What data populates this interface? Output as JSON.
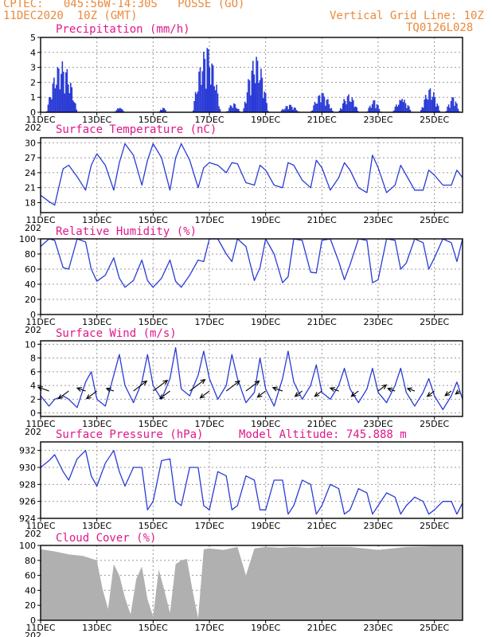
{
  "header": {
    "station": "CPTEC:   045:56W-14:30S   POSSE (GO)",
    "run": "11DEC2020  10Z (GMT)",
    "grid_line": "Vertical Grid Line: 10Z",
    "code": "TQ0126L028"
  },
  "colors": {
    "header": "#e98a3c",
    "title": "#e0188a",
    "line": "#2a3bd6",
    "cloud": "#b0b0b0",
    "arrow": "#000000",
    "grid": "#9a9a9a"
  },
  "x_axis": {
    "range_days": [
      11,
      26
    ],
    "tick_labels": [
      "11DEC",
      "13DEC",
      "15DEC",
      "17DEC",
      "19DEC",
      "21DEC",
      "23DEC",
      "25DEC"
    ],
    "tick_days": [
      11,
      13,
      15,
      17,
      19,
      21,
      23,
      25
    ],
    "first_year_fragment": "202"
  },
  "chart_data": [
    {
      "type": "bar",
      "title": "Precipitation (mm/h)",
      "ylim": [
        0,
        5
      ],
      "yticks": [
        0,
        1,
        2,
        3,
        4,
        5
      ],
      "bursts": [
        {
          "from": 11.2,
          "to": 12.3,
          "peak": 3.4
        },
        {
          "from": 13.6,
          "to": 14.0,
          "peak": 0.3
        },
        {
          "from": 15.2,
          "to": 15.5,
          "peak": 0.3
        },
        {
          "from": 16.4,
          "to": 17.4,
          "peak": 4.3
        },
        {
          "from": 17.6,
          "to": 18.1,
          "peak": 0.6
        },
        {
          "from": 18.2,
          "to": 19.1,
          "peak": 3.7
        },
        {
          "from": 19.5,
          "to": 20.2,
          "peak": 0.5
        },
        {
          "from": 20.6,
          "to": 21.4,
          "peak": 1.3
        },
        {
          "from": 21.6,
          "to": 22.3,
          "peak": 1.2
        },
        {
          "from": 22.6,
          "to": 23.1,
          "peak": 0.8
        },
        {
          "from": 23.5,
          "to": 24.2,
          "peak": 0.9
        },
        {
          "from": 24.5,
          "to": 25.2,
          "peak": 1.6
        },
        {
          "from": 25.4,
          "to": 25.9,
          "peak": 1.0
        }
      ]
    },
    {
      "type": "line",
      "title": "Surface Temperature (nC)",
      "ylim": [
        16,
        31
      ],
      "yticks": [
        18,
        21,
        24,
        27,
        30
      ],
      "x": [
        11.0,
        11.3,
        11.5,
        11.8,
        12.0,
        12.3,
        12.6,
        12.8,
        13.0,
        13.3,
        13.6,
        13.8,
        14.0,
        14.3,
        14.6,
        14.8,
        15.0,
        15.3,
        15.6,
        15.8,
        16.0,
        16.3,
        16.6,
        16.8,
        17.0,
        17.3,
        17.6,
        17.8,
        18.0,
        18.3,
        18.6,
        18.8,
        19.0,
        19.3,
        19.6,
        19.8,
        20.0,
        20.3,
        20.6,
        20.8,
        21.0,
        21.3,
        21.6,
        21.8,
        22.0,
        22.3,
        22.6,
        22.8,
        23.0,
        23.3,
        23.6,
        23.8,
        24.0,
        24.3,
        24.6,
        24.8,
        25.0,
        25.3,
        25.6,
        25.8,
        26.0
      ],
      "y": [
        19.5,
        18.2,
        17.5,
        24.8,
        25.5,
        23.2,
        20.5,
        25.5,
        27.8,
        25.5,
        20.5,
        26.0,
        29.8,
        27.5,
        21.5,
        26.5,
        29.8,
        27.0,
        20.5,
        27.0,
        29.8,
        26.5,
        21.0,
        25.0,
        26.0,
        25.5,
        24.0,
        26.0,
        25.8,
        22.0,
        21.5,
        25.5,
        24.5,
        21.5,
        21.0,
        26.0,
        25.5,
        22.5,
        21.0,
        26.5,
        25.0,
        20.5,
        23.0,
        26.0,
        24.5,
        21.0,
        20.0,
        27.5,
        25.0,
        20.0,
        21.5,
        25.5,
        23.5,
        20.5,
        20.5,
        24.5,
        23.5,
        21.5,
        21.5,
        24.5,
        23.0
      ]
    },
    {
      "type": "line",
      "title": "Relative Humidity (%)",
      "ylim": [
        0,
        100
      ],
      "yticks": [
        0,
        20,
        40,
        60,
        80,
        100
      ],
      "x": [
        11.0,
        11.3,
        11.5,
        11.8,
        12.0,
        12.3,
        12.6,
        12.8,
        13.0,
        13.3,
        13.6,
        13.8,
        14.0,
        14.3,
        14.6,
        14.8,
        15.0,
        15.3,
        15.6,
        15.8,
        16.0,
        16.3,
        16.6,
        16.8,
        17.0,
        17.3,
        17.6,
        17.8,
        18.0,
        18.3,
        18.6,
        18.8,
        19.0,
        19.3,
        19.6,
        19.8,
        20.0,
        20.3,
        20.6,
        20.8,
        21.0,
        21.3,
        21.6,
        21.8,
        22.0,
        22.3,
        22.6,
        22.8,
        23.0,
        23.3,
        23.6,
        23.8,
        24.0,
        24.3,
        24.6,
        24.8,
        25.0,
        25.3,
        25.6,
        25.8,
        26.0
      ],
      "y": [
        90,
        100,
        98,
        62,
        60,
        100,
        96,
        60,
        44,
        52,
        75,
        48,
        36,
        45,
        72,
        45,
        36,
        48,
        72,
        44,
        36,
        52,
        72,
        70,
        100,
        100,
        80,
        70,
        100,
        90,
        45,
        62,
        100,
        80,
        42,
        50,
        100,
        98,
        56,
        55,
        98,
        100,
        70,
        46,
        66,
        100,
        98,
        42,
        46,
        100,
        98,
        60,
        68,
        100,
        95,
        60,
        75,
        100,
        95,
        70,
        100
      ]
    },
    {
      "type": "line",
      "title": "Surface Wind (m/s)",
      "ylim": [
        -0.5,
        10.5
      ],
      "yticks": [
        0,
        2,
        4,
        6,
        8,
        10
      ],
      "x": [
        11.0,
        11.3,
        11.5,
        11.8,
        12.0,
        12.3,
        12.6,
        12.8,
        13.0,
        13.3,
        13.6,
        13.8,
        14.0,
        14.3,
        14.6,
        14.8,
        15.0,
        15.3,
        15.6,
        15.8,
        16.0,
        16.3,
        16.6,
        16.8,
        17.0,
        17.3,
        17.6,
        17.8,
        18.0,
        18.3,
        18.6,
        18.8,
        19.0,
        19.3,
        19.6,
        19.8,
        20.0,
        20.3,
        20.6,
        20.8,
        21.0,
        21.3,
        21.6,
        21.8,
        22.0,
        22.3,
        22.6,
        22.8,
        23.0,
        23.3,
        23.6,
        23.8,
        24.0,
        24.3,
        24.6,
        24.8,
        25.0,
        25.3,
        25.6,
        25.8,
        26.0
      ],
      "y": [
        2.5,
        1.0,
        2.0,
        2.5,
        2.0,
        0.8,
        4.5,
        6.0,
        2.0,
        1.0,
        5.5,
        8.5,
        4.0,
        1.5,
        4.5,
        8.5,
        4.0,
        2.0,
        5.0,
        9.5,
        3.5,
        2.5,
        5.5,
        9.0,
        5.0,
        2.0,
        4.0,
        8.5,
        5.0,
        1.5,
        3.0,
        8.0,
        3.5,
        1.0,
        5.0,
        9.0,
        4.5,
        2.0,
        4.0,
        7.0,
        3.0,
        2.0,
        4.0,
        6.5,
        3.5,
        1.5,
        3.5,
        6.5,
        3.0,
        1.5,
        4.0,
        6.5,
        3.0,
        1.0,
        3.0,
        5.0,
        2.5,
        0.5,
        2.5,
        4.5,
        2.0
      ],
      "arrows": [
        {
          "day": 11.3,
          "dir": "from-left",
          "len": 0.9
        },
        {
          "day": 12.0,
          "dir": "up-left",
          "len": 1.0
        },
        {
          "day": 12.6,
          "dir": "from-left",
          "len": 0.7
        },
        {
          "day": 13.0,
          "dir": "up-left",
          "len": 1.0
        },
        {
          "day": 13.6,
          "dir": "from-left",
          "len": 0.6
        },
        {
          "day": 14.3,
          "dir": "up-right",
          "len": 1.3
        },
        {
          "day": 15.0,
          "dir": "up-right",
          "len": 1.4
        },
        {
          "day": 15.6,
          "dir": "up-left",
          "len": 1.0
        },
        {
          "day": 16.3,
          "dir": "up-right",
          "len": 1.5
        },
        {
          "day": 17.0,
          "dir": "up-left",
          "len": 0.9
        },
        {
          "day": 17.6,
          "dir": "up-right",
          "len": 1.3
        },
        {
          "day": 18.3,
          "dir": "up-right",
          "len": 1.3
        },
        {
          "day": 19.0,
          "dir": "up-left",
          "len": 0.8
        },
        {
          "day": 19.6,
          "dir": "from-left",
          "len": 0.8
        },
        {
          "day": 20.3,
          "dir": "up-left",
          "len": 0.7
        },
        {
          "day": 21.0,
          "dir": "up-left",
          "len": 0.7
        },
        {
          "day": 21.6,
          "dir": "from-left",
          "len": 0.7
        },
        {
          "day": 22.3,
          "dir": "up-left",
          "len": 0.7
        },
        {
          "day": 23.0,
          "dir": "up-right",
          "len": 0.8
        },
        {
          "day": 23.6,
          "dir": "from-left",
          "len": 0.6
        },
        {
          "day": 24.3,
          "dir": "from-left",
          "len": 0.6
        },
        {
          "day": 25.0,
          "dir": "up-left",
          "len": 0.7
        },
        {
          "day": 25.6,
          "dir": "up-left",
          "len": 0.6
        },
        {
          "day": 25.9,
          "dir": "up-left",
          "len": 0.4
        }
      ]
    },
    {
      "type": "line",
      "title": "Surface Pressure (hPa)",
      "annotation": "Model Altitude: 745.888  m",
      "ylim": [
        924,
        933
      ],
      "yticks": [
        924,
        926,
        928,
        930,
        932
      ],
      "x": [
        11.0,
        11.3,
        11.5,
        11.8,
        12.0,
        12.3,
        12.6,
        12.8,
        13.0,
        13.3,
        13.6,
        13.8,
        14.0,
        14.3,
        14.6,
        14.8,
        15.0,
        15.3,
        15.6,
        15.8,
        16.0,
        16.3,
        16.6,
        16.8,
        17.0,
        17.3,
        17.6,
        17.8,
        18.0,
        18.3,
        18.6,
        18.8,
        19.0,
        19.3,
        19.6,
        19.8,
        20.0,
        20.3,
        20.6,
        20.8,
        21.0,
        21.3,
        21.6,
        21.8,
        22.0,
        22.3,
        22.6,
        22.8,
        23.0,
        23.3,
        23.6,
        23.8,
        24.0,
        24.3,
        24.6,
        24.8,
        25.0,
        25.3,
        25.6,
        25.8,
        26.0
      ],
      "y": [
        930.0,
        930.8,
        931.5,
        929.5,
        928.5,
        931.0,
        932.0,
        929.0,
        927.8,
        930.5,
        932.0,
        929.5,
        927.8,
        930.0,
        930.0,
        925.0,
        926.0,
        930.8,
        931.0,
        926.0,
        925.5,
        930.0,
        930.0,
        925.5,
        925.0,
        929.5,
        929.0,
        925.0,
        925.5,
        929.0,
        928.5,
        925.0,
        925.0,
        928.5,
        928.5,
        924.5,
        925.5,
        928.5,
        928.0,
        924.5,
        925.5,
        928.0,
        927.5,
        924.5,
        925.0,
        927.5,
        927.0,
        924.5,
        925.5,
        927.0,
        926.5,
        924.5,
        925.5,
        926.5,
        926.0,
        924.5,
        925.0,
        926.0,
        926.0,
        924.5,
        925.8
      ]
    },
    {
      "type": "area",
      "title": "Cloud Cover (%)",
      "ylim": [
        0,
        100
      ],
      "yticks": [
        0,
        20,
        40,
        60,
        80,
        100
      ],
      "x": [
        11.0,
        11.5,
        12.0,
        12.5,
        13.0,
        13.2,
        13.4,
        13.6,
        13.8,
        14.0,
        14.2,
        14.4,
        14.6,
        14.8,
        15.0,
        15.2,
        15.4,
        15.6,
        15.8,
        16.0,
        16.2,
        16.4,
        16.6,
        16.8,
        17.0,
        17.5,
        18.0,
        18.3,
        18.6,
        19.0,
        19.5,
        20.0,
        20.5,
        21.0,
        22.0,
        22.5,
        23.0,
        24.0,
        25.0,
        26.0
      ],
      "y": [
        95,
        92,
        88,
        86,
        80,
        42,
        15,
        75,
        60,
        30,
        8,
        55,
        72,
        28,
        5,
        68,
        40,
        10,
        75,
        80,
        82,
        40,
        3,
        95,
        96,
        94,
        98,
        60,
        96,
        98,
        97,
        98,
        97,
        98,
        98,
        96,
        94,
        98,
        99,
        99
      ]
    }
  ]
}
